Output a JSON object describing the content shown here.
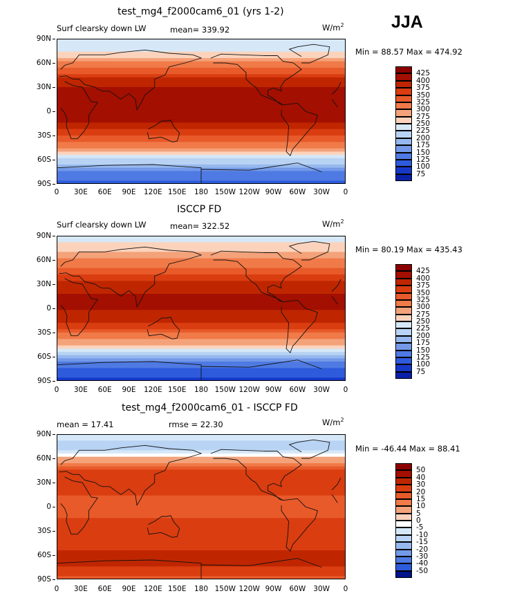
{
  "season": "JJA",
  "units": {
    "base": "W/m",
    "exp": "2"
  },
  "x_ticks": [
    "0",
    "30E",
    "60E",
    "90E",
    "120E",
    "150E",
    "180",
    "150W",
    "120W",
    "90W",
    "60W",
    "30W",
    "0"
  ],
  "y_ticks": [
    "90N",
    "60N",
    "30N",
    "0",
    "30S",
    "60S",
    "90S"
  ],
  "panels": [
    {
      "title": "test_mg4_f2000cam6_01 (yrs 1-2)",
      "left_label": "Surf clearsky down LW",
      "center_label": "mean=  339.92",
      "minmax": "Min =   88.57 Max =  474.92",
      "colorbar": [
        "425",
        "400",
        "375",
        "350",
        "325",
        "300",
        "275",
        "250",
        "225",
        "200",
        "175",
        "150",
        "125",
        "100",
        "75"
      ]
    },
    {
      "title": "ISCCP FD",
      "left_label": "Surf clearsky down LW",
      "center_label": "mean=  322.52",
      "minmax": "Min =   80.19 Max =  435.43",
      "colorbar": [
        "425",
        "400",
        "375",
        "350",
        "325",
        "300",
        "275",
        "250",
        "225",
        "200",
        "175",
        "150",
        "125",
        "100",
        "75"
      ]
    },
    {
      "title": "test_mg4_f2000cam6_01 - ISCCP FD",
      "left_label": "mean =   17.41",
      "center_label": "rmse =   22.30",
      "minmax": "Min = -46.44 Max =   88.41",
      "colorbar": [
        "50",
        "40",
        "30",
        "20",
        "15",
        "10",
        "5",
        "0",
        "-5",
        "-10",
        "-15",
        "-20",
        "-30",
        "-40",
        "-50"
      ]
    }
  ],
  "colors": {
    "warm": [
      "#8b0000",
      "#a30f00",
      "#bf2600",
      "#d93d10",
      "#e85a2a",
      "#f07a48",
      "#f4a27a",
      "#fbd3bc",
      "#ffffff"
    ],
    "cool": [
      "#d6e8f8",
      "#b8d3f3",
      "#96b8ee",
      "#7399e8",
      "#4f7ae3",
      "#2e5bdb",
      "#1638c9",
      "#0a20a8",
      "#00138a"
    ],
    "land": "#111111"
  },
  "chart_data": [
    {
      "type": "heatmap",
      "title": "test_mg4_f2000cam6_01 (yrs 1-2)",
      "subtitle": "Surf clearsky down LW",
      "season": "JJA",
      "mean": 339.92,
      "min": 88.57,
      "max": 474.92,
      "units": "W/m2",
      "x_range": [
        0,
        360
      ],
      "y_range": [
        -90,
        90
      ],
      "levels": [
        75,
        100,
        125,
        150,
        175,
        200,
        225,
        250,
        275,
        300,
        325,
        350,
        375,
        400,
        425
      ],
      "zonal_mean_profile": {
        "lat": [
          90,
          75,
          60,
          45,
          30,
          15,
          0,
          -15,
          -30,
          -45,
          -60,
          -75,
          -90
        ],
        "value": [
          225,
          240,
          300,
          360,
          405,
          420,
          420,
          395,
          345,
          300,
          220,
          150,
          110
        ]
      }
    },
    {
      "type": "heatmap",
      "title": "ISCCP FD",
      "subtitle": "Surf clearsky down LW",
      "season": "JJA",
      "mean": 322.52,
      "min": 80.19,
      "max": 435.43,
      "units": "W/m2",
      "x_range": [
        0,
        360
      ],
      "y_range": [
        -90,
        90
      ],
      "levels": [
        75,
        100,
        125,
        150,
        175,
        200,
        225,
        250,
        275,
        300,
        325,
        350,
        375,
        400,
        425
      ],
      "zonal_mean_profile": {
        "lat": [
          90,
          75,
          60,
          45,
          30,
          15,
          0,
          -15,
          -30,
          -45,
          -60,
          -75,
          -90
        ],
        "value": [
          240,
          255,
          300,
          345,
          385,
          405,
          405,
          380,
          330,
          280,
          180,
          120,
          95
        ]
      }
    },
    {
      "type": "heatmap",
      "title": "test_mg4_f2000cam6_01 - ISCCP FD",
      "season": "JJA",
      "mean": 17.41,
      "rmse": 22.3,
      "min": -46.44,
      "max": 88.41,
      "units": "W/m2",
      "x_range": [
        0,
        360
      ],
      "y_range": [
        -90,
        90
      ],
      "levels": [
        -50,
        -40,
        -30,
        -20,
        -15,
        -10,
        -5,
        0,
        5,
        10,
        15,
        20,
        30,
        40,
        50
      ],
      "zonal_mean_profile": {
        "lat": [
          90,
          75,
          60,
          45,
          30,
          15,
          0,
          -15,
          -30,
          -45,
          -60,
          -75,
          -90
        ],
        "value": [
          -5,
          -15,
          5,
          20,
          25,
          20,
          18,
          20,
          20,
          25,
          35,
          30,
          15
        ]
      }
    }
  ]
}
